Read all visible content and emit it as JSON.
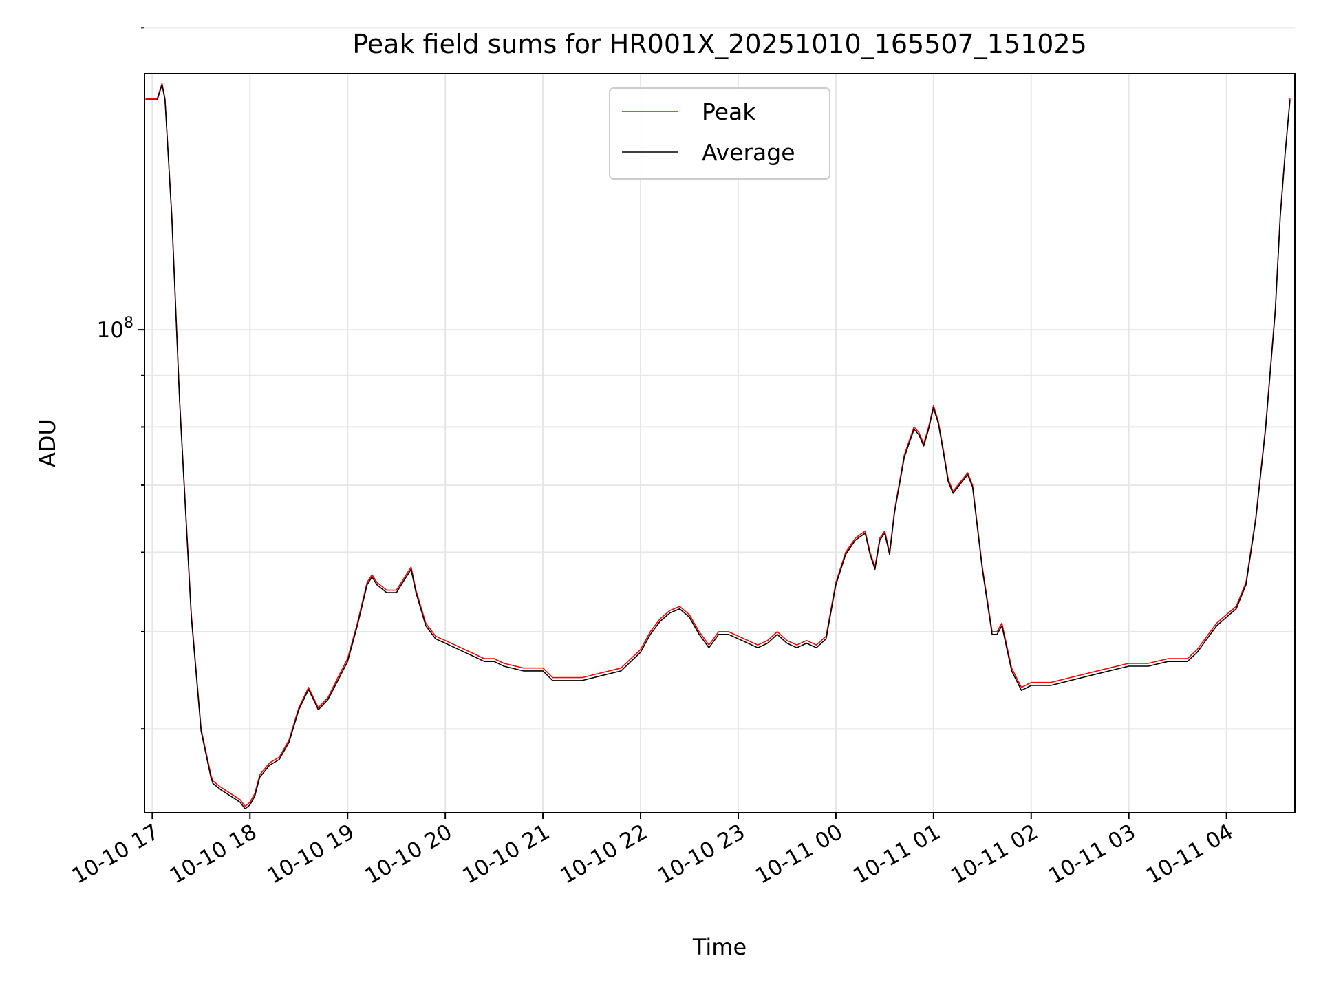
{
  "chart_data": {
    "type": "line",
    "title": "Peak field sums for HR001X_20251010_165507_151025",
    "xlabel": "Time",
    "ylabel": "ADU",
    "yscale": "log",
    "grid": true,
    "legend_position": "upper-center",
    "colors": {
      "peak": "#ff0000",
      "average": "#000000",
      "grid": "#e6e6e6"
    },
    "x_start": "2025-10-10 16:55",
    "x_unit": "hours since 2025-10-10 17:00",
    "xlim": [
      -0.08,
      11.7
    ],
    "ylim": [
      33000000,
      180000000
    ],
    "x_ticks": [
      {
        "x": 0,
        "label": "10-10 17"
      },
      {
        "x": 1,
        "label": "10-10 18"
      },
      {
        "x": 2,
        "label": "10-10 19"
      },
      {
        "x": 3,
        "label": "10-10 20"
      },
      {
        "x": 4,
        "label": "10-10 21"
      },
      {
        "x": 5,
        "label": "10-10 22"
      },
      {
        "x": 6,
        "label": "10-10 23"
      },
      {
        "x": 7,
        "label": "10-11 00"
      },
      {
        "x": 8,
        "label": "10-11 01"
      },
      {
        "x": 9,
        "label": "10-11 02"
      },
      {
        "x": 10,
        "label": "10-11 03"
      },
      {
        "x": 11,
        "label": "10-11 04"
      }
    ],
    "y_major_ticks": [
      {
        "value": 100000000,
        "label_base": "10",
        "label_exp": "8"
      }
    ],
    "y_minor_ticks": [
      40000000,
      50000000,
      60000000,
      70000000,
      80000000,
      90000000,
      200000000
    ],
    "series": [
      {
        "name": "Peak",
        "color": "#ff0000",
        "x": [
          -0.07,
          0.05,
          0.1,
          0.13,
          0.2,
          0.28,
          0.4,
          0.5,
          0.6,
          0.62,
          0.7,
          0.8,
          0.9,
          0.95,
          1.0,
          1.05,
          1.1,
          1.2,
          1.3,
          1.4,
          1.5,
          1.6,
          1.7,
          1.8,
          1.9,
          2.0,
          2.1,
          2.2,
          2.25,
          2.3,
          2.4,
          2.5,
          2.6,
          2.65,
          2.7,
          2.8,
          2.9,
          3.0,
          3.1,
          3.2,
          3.3,
          3.4,
          3.5,
          3.6,
          3.8,
          4.0,
          4.1,
          4.2,
          4.4,
          4.6,
          4.8,
          5.0,
          5.1,
          5.2,
          5.3,
          5.4,
          5.5,
          5.6,
          5.7,
          5.8,
          5.9,
          6.0,
          6.2,
          6.3,
          6.4,
          6.5,
          6.6,
          6.7,
          6.8,
          6.9,
          7.0,
          7.1,
          7.2,
          7.3,
          7.35,
          7.4,
          7.45,
          7.5,
          7.55,
          7.6,
          7.7,
          7.8,
          7.85,
          7.9,
          7.95,
          8.0,
          8.05,
          8.1,
          8.15,
          8.2,
          8.25,
          8.3,
          8.35,
          8.4,
          8.5,
          8.6,
          8.65,
          8.7,
          8.8,
          8.9,
          9.0,
          9.1,
          9.2,
          9.4,
          9.6,
          9.8,
          10.0,
          10.2,
          10.4,
          10.6,
          10.7,
          10.8,
          10.9,
          11.0,
          11.1,
          11.2,
          11.3,
          11.4,
          11.5,
          11.55,
          11.6,
          11.65
        ],
        "values": [
          170000000,
          170000000,
          176000000,
          170000000,
          130000000,
          85000000,
          52000000,
          40000000,
          36000000,
          35500000,
          35000000,
          34500000,
          34000000,
          33500000,
          33800000,
          34500000,
          36000000,
          37000000,
          37500000,
          39000000,
          42000000,
          44000000,
          42000000,
          43000000,
          45000000,
          47000000,
          51000000,
          56000000,
          57000000,
          56000000,
          55000000,
          55000000,
          57000000,
          58000000,
          55000000,
          51000000,
          49500000,
          49000000,
          48500000,
          48000000,
          47500000,
          47000000,
          47000000,
          46500000,
          46000000,
          46000000,
          45000000,
          45000000,
          45000000,
          45500000,
          46000000,
          48000000,
          50000000,
          51500000,
          52500000,
          53000000,
          52000000,
          50000000,
          48500000,
          50000000,
          50000000,
          49500000,
          48500000,
          49000000,
          50000000,
          49000000,
          48500000,
          49000000,
          48500000,
          49500000,
          56000000,
          60000000,
          62000000,
          63000000,
          60000000,
          58000000,
          62000000,
          63000000,
          60000000,
          66000000,
          75000000,
          80000000,
          79000000,
          77000000,
          80000000,
          84000000,
          81000000,
          76000000,
          71000000,
          69000000,
          70000000,
          71000000,
          72000000,
          70000000,
          58000000,
          50000000,
          50000000,
          51000000,
          46000000,
          44000000,
          44500000,
          44500000,
          44500000,
          45000000,
          45500000,
          46000000,
          46500000,
          46500000,
          47000000,
          47000000,
          48000000,
          49500000,
          51000000,
          52000000,
          53000000,
          56000000,
          65000000,
          80000000,
          105000000,
          130000000,
          150000000,
          170000000
        ]
      },
      {
        "name": "Average",
        "color": "#000000",
        "x": [
          -0.07,
          0.05,
          0.1,
          0.13,
          0.2,
          0.28,
          0.4,
          0.5,
          0.6,
          0.62,
          0.7,
          0.8,
          0.9,
          0.95,
          1.0,
          1.05,
          1.1,
          1.2,
          1.3,
          1.4,
          1.5,
          1.6,
          1.7,
          1.8,
          1.9,
          2.0,
          2.1,
          2.2,
          2.25,
          2.3,
          2.4,
          2.5,
          2.6,
          2.65,
          2.7,
          2.8,
          2.9,
          3.0,
          3.1,
          3.2,
          3.3,
          3.4,
          3.5,
          3.6,
          3.8,
          4.0,
          4.1,
          4.2,
          4.4,
          4.6,
          4.8,
          5.0,
          5.1,
          5.2,
          5.3,
          5.4,
          5.5,
          5.6,
          5.7,
          5.8,
          5.9,
          6.0,
          6.2,
          6.3,
          6.4,
          6.5,
          6.6,
          6.7,
          6.8,
          6.9,
          7.0,
          7.1,
          7.2,
          7.3,
          7.35,
          7.4,
          7.45,
          7.5,
          7.55,
          7.6,
          7.7,
          7.8,
          7.85,
          7.9,
          7.95,
          8.0,
          8.05,
          8.1,
          8.15,
          8.2,
          8.25,
          8.3,
          8.35,
          8.4,
          8.5,
          8.6,
          8.65,
          8.7,
          8.8,
          8.9,
          9.0,
          9.1,
          9.2,
          9.4,
          9.6,
          9.8,
          10.0,
          10.2,
          10.4,
          10.6,
          10.7,
          10.8,
          10.9,
          11.0,
          11.1,
          11.2,
          11.3,
          11.4,
          11.5,
          11.55,
          11.6,
          11.65
        ],
        "values": [
          169500000,
          169500000,
          175500000,
          169500000,
          129500000,
          84600000,
          51700000,
          39800000,
          35800000,
          35300000,
          34800000,
          34300000,
          33800000,
          33300000,
          33600000,
          34300000,
          35800000,
          36800000,
          37300000,
          38800000,
          41800000,
          43800000,
          41800000,
          42800000,
          44700000,
          46700000,
          50700000,
          55700000,
          56700000,
          55700000,
          54700000,
          54700000,
          56700000,
          57700000,
          54700000,
          50700000,
          49200000,
          48700000,
          48200000,
          47700000,
          47200000,
          46700000,
          46700000,
          46200000,
          45700000,
          45700000,
          44700000,
          44700000,
          44700000,
          45200000,
          45700000,
          47700000,
          49700000,
          51200000,
          52200000,
          52700000,
          51700000,
          49700000,
          48200000,
          49700000,
          49700000,
          49200000,
          48200000,
          48700000,
          49700000,
          48700000,
          48200000,
          48700000,
          48200000,
          49200000,
          55700000,
          59700000,
          61700000,
          62700000,
          59700000,
          57700000,
          61700000,
          62700000,
          59700000,
          65700000,
          74600000,
          79600000,
          78600000,
          76600000,
          79600000,
          83600000,
          80600000,
          75600000,
          70600000,
          68700000,
          69700000,
          70700000,
          71700000,
          69700000,
          57700000,
          49700000,
          49700000,
          50700000,
          45700000,
          43700000,
          44200000,
          44200000,
          44200000,
          44700000,
          45200000,
          45700000,
          46200000,
          46200000,
          46700000,
          46700000,
          47700000,
          49200000,
          50700000,
          51700000,
          52700000,
          55700000,
          64700000,
          79600000,
          104500000,
          129500000,
          149500000,
          169500000
        ]
      }
    ]
  }
}
